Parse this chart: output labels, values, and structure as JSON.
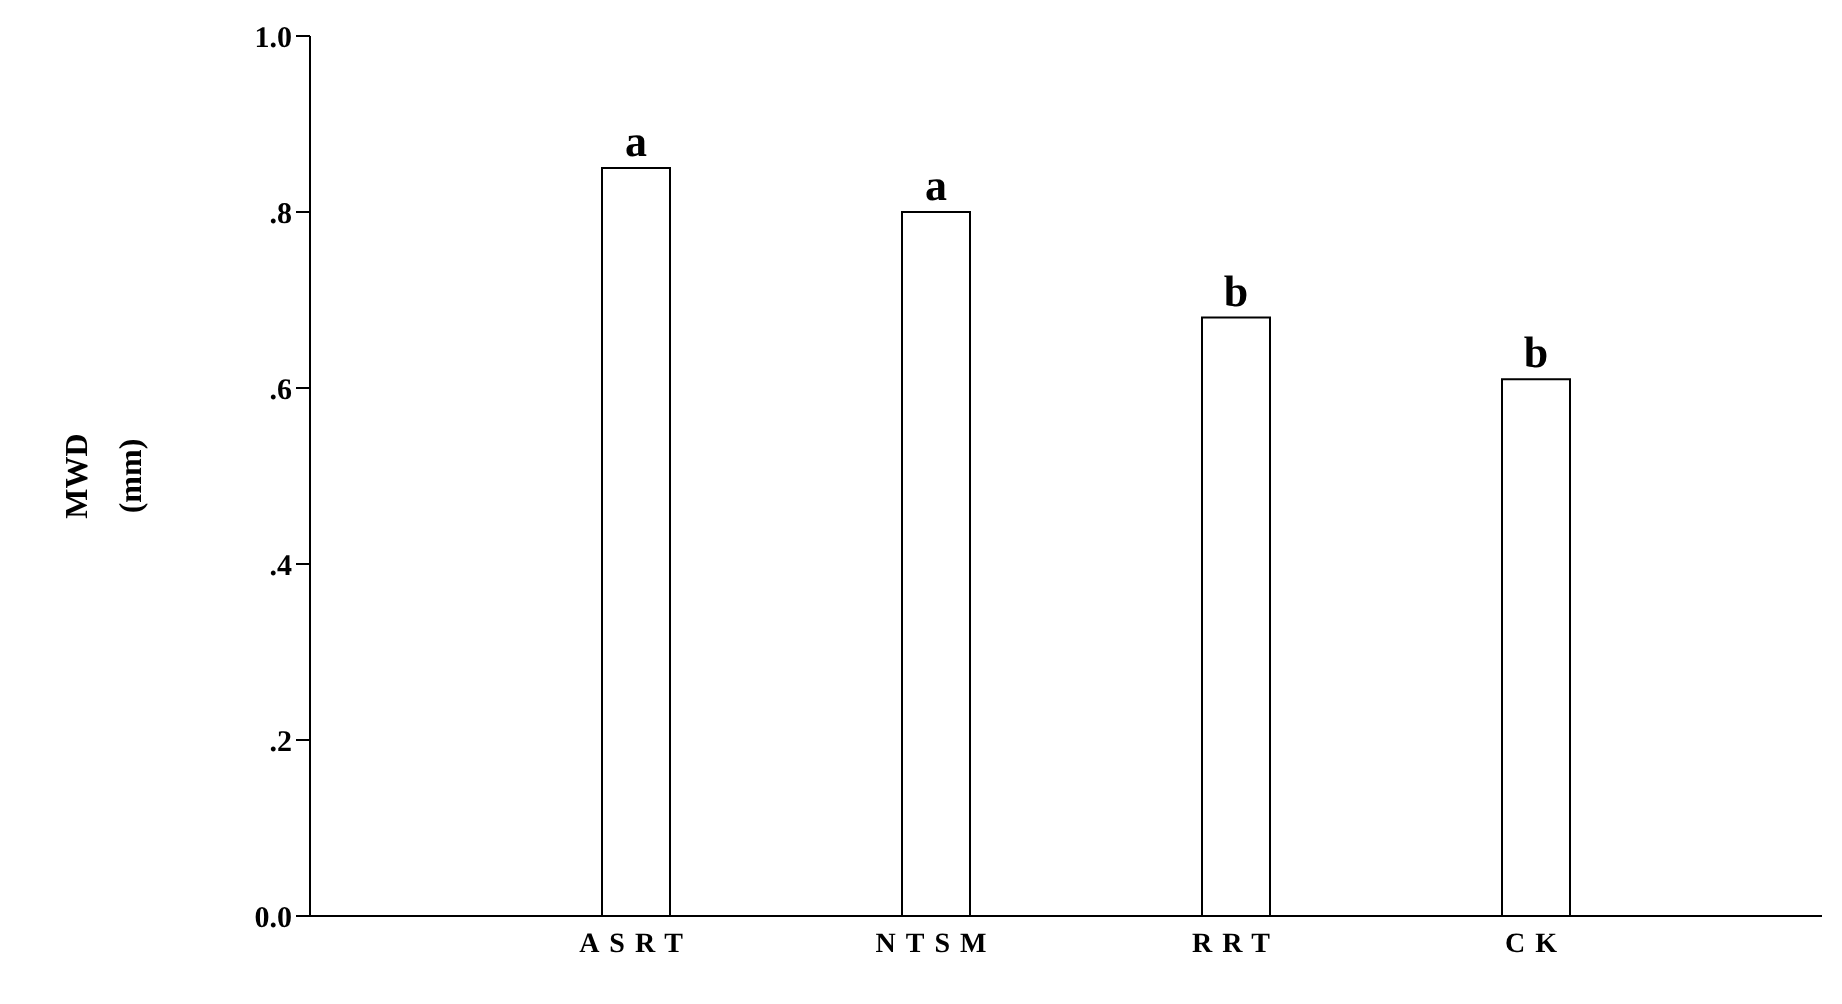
{
  "chart_data": {
    "type": "bar",
    "ylabel": "MWD\n(mm)",
    "categories": [
      "ASRT",
      "NTSM",
      "RRT",
      "CK"
    ],
    "values": [
      0.85,
      0.8,
      0.68,
      0.61
    ],
    "color": "#ffffff",
    "ylim": [
      0,
      1
    ],
    "yticks": [
      {
        "value": 0,
        "label": "0.0"
      },
      {
        "value": 0.2,
        "label": ".2"
      },
      {
        "value": 0.4,
        "label": ".4"
      },
      {
        "value": 0.6,
        "label": ".6"
      },
      {
        "value": 0.8,
        "label": ".8"
      },
      {
        "value": 1,
        "label": "1.0"
      }
    ],
    "annotations": [
      {
        "text": "a",
        "x": "ASRT",
        "y": 0.85
      },
      {
        "text": "a",
        "x": "NTSM",
        "y": 0.8
      },
      {
        "text": "b",
        "x": "RRT",
        "y": 0.68
      },
      {
        "text": "b",
        "x": "CK",
        "y": 0.61
      }
    ],
    "grid": false,
    "legend": false
  }
}
